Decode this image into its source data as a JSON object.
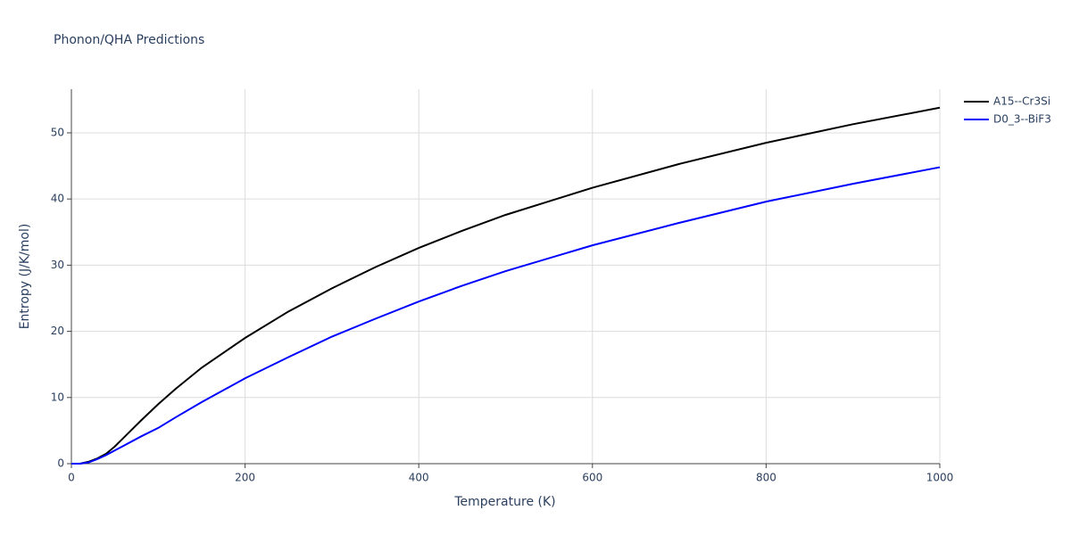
{
  "chart_data": {
    "type": "line",
    "title": "Phonon/QHA Predictions",
    "x_label": "Temperature (K)",
    "y_label": "Entropy (J/K/mol)",
    "x": [
      0,
      10,
      20,
      30,
      40,
      50,
      60,
      80,
      100,
      120,
      150,
      200,
      250,
      300,
      350,
      400,
      450,
      500,
      600,
      700,
      800,
      900,
      1000
    ],
    "series": [
      {
        "name": "A15--Cr3Si",
        "color": "#000000",
        "values": [
          0,
          0,
          0.3,
          0.8,
          1.5,
          2.6,
          3.9,
          6.5,
          9.0,
          11.3,
          14.5,
          19.0,
          23.0,
          26.5,
          29.7,
          32.6,
          35.2,
          37.6,
          41.7,
          45.3,
          48.5,
          51.3,
          53.8
        ]
      },
      {
        "name": "D0_3--BiF3",
        "color": "#0000ff",
        "values": [
          0,
          0,
          0.2,
          0.7,
          1.3,
          2.0,
          2.7,
          4.1,
          5.4,
          7.0,
          9.3,
          12.9,
          16.1,
          19.2,
          21.9,
          24.5,
          26.9,
          29.1,
          33.0,
          36.4,
          39.6,
          42.3,
          44.8
        ]
      }
    ],
    "xlim": [
      0,
      1000
    ],
    "xticks": [
      0,
      200,
      400,
      600,
      800,
      1000
    ],
    "ylim": [
      0,
      56.6
    ],
    "yticks": [
      0,
      10,
      20,
      30,
      40,
      50
    ],
    "grid": true,
    "legend": "right"
  }
}
